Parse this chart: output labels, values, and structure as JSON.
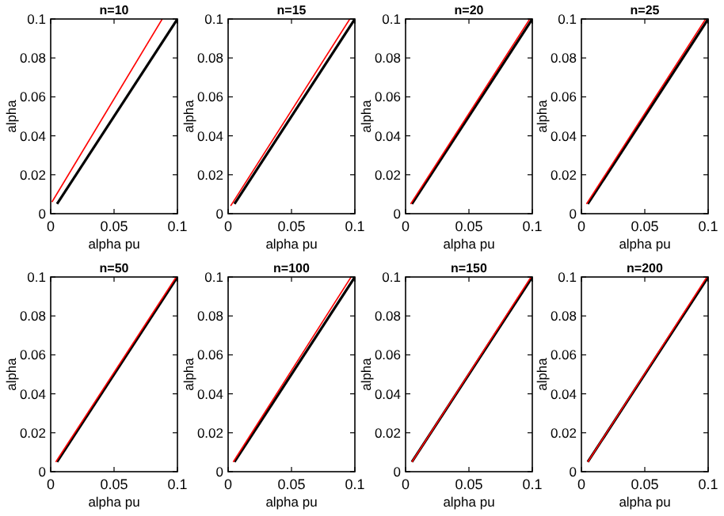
{
  "chart_data": [
    {
      "type": "line",
      "title": "n=10",
      "xlabel": "alpha pu",
      "ylabel": "alpha",
      "xlim": [
        0,
        0.1
      ],
      "ylim": [
        0,
        0.1
      ],
      "xticks": [
        0,
        0.05,
        0.1
      ],
      "yticks": [
        0,
        0.02,
        0.04,
        0.06,
        0.08,
        0.1
      ],
      "grid": false,
      "series": [
        {
          "color": "#000000",
          "x": [
            0.005,
            0.1
          ],
          "values": [
            0.005,
            0.1
          ]
        },
        {
          "color": "#ff0000",
          "x": [
            0.001,
            0.088
          ],
          "values": [
            0.006,
            0.1
          ]
        }
      ]
    },
    {
      "type": "line",
      "title": "n=15",
      "xlabel": "alpha pu",
      "ylabel": "alpha",
      "xlim": [
        0,
        0.1
      ],
      "ylim": [
        0,
        0.1
      ],
      "xticks": [
        0,
        0.05,
        0.1
      ],
      "yticks": [
        0,
        0.02,
        0.04,
        0.06,
        0.08,
        0.1
      ],
      "grid": false,
      "series": [
        {
          "color": "#000000",
          "x": [
            0.005,
            0.1
          ],
          "values": [
            0.005,
            0.1
          ]
        },
        {
          "color": "#ff0000",
          "x": [
            0.002,
            0.096
          ],
          "values": [
            0.004,
            0.1
          ]
        }
      ]
    },
    {
      "type": "line",
      "title": "n=20",
      "xlabel": "alpha pu",
      "ylabel": "alpha",
      "xlim": [
        0,
        0.1
      ],
      "ylim": [
        0,
        0.1
      ],
      "xticks": [
        0,
        0.05,
        0.1
      ],
      "yticks": [
        0,
        0.02,
        0.04,
        0.06,
        0.08,
        0.1
      ],
      "grid": false,
      "series": [
        {
          "color": "#000000",
          "x": [
            0.005,
            0.1
          ],
          "values": [
            0.005,
            0.1
          ]
        },
        {
          "color": "#ff0000",
          "x": [
            0.004,
            0.098
          ],
          "values": [
            0.005,
            0.1
          ]
        }
      ]
    },
    {
      "type": "line",
      "title": "n=25",
      "xlabel": "alpha pu",
      "ylabel": "alpha",
      "xlim": [
        0,
        0.1
      ],
      "ylim": [
        0,
        0.1
      ],
      "xticks": [
        0,
        0.05,
        0.1
      ],
      "yticks": [
        0,
        0.02,
        0.04,
        0.06,
        0.08,
        0.1
      ],
      "grid": false,
      "series": [
        {
          "color": "#000000",
          "x": [
            0.005,
            0.1
          ],
          "values": [
            0.005,
            0.1
          ]
        },
        {
          "color": "#ff0000",
          "x": [
            0.004,
            0.098
          ],
          "values": [
            0.005,
            0.1
          ]
        }
      ]
    },
    {
      "type": "line",
      "title": "n=50",
      "xlabel": "alpha pu",
      "ylabel": "alpha",
      "xlim": [
        0,
        0.1
      ],
      "ylim": [
        0,
        0.1
      ],
      "xticks": [
        0,
        0.05,
        0.1
      ],
      "yticks": [
        0,
        0.02,
        0.04,
        0.06,
        0.08,
        0.1
      ],
      "grid": false,
      "series": [
        {
          "color": "#000000",
          "x": [
            0.005,
            0.1
          ],
          "values": [
            0.005,
            0.1
          ]
        },
        {
          "color": "#ff0000",
          "x": [
            0.004,
            0.099
          ],
          "values": [
            0.005,
            0.1
          ]
        }
      ]
    },
    {
      "type": "line",
      "title": "n=100",
      "xlabel": "alpha pu",
      "ylabel": "alpha",
      "xlim": [
        0,
        0.1
      ],
      "ylim": [
        0,
        0.1
      ],
      "xticks": [
        0,
        0.05,
        0.1
      ],
      "yticks": [
        0,
        0.02,
        0.04,
        0.06,
        0.08,
        0.1
      ],
      "grid": false,
      "series": [
        {
          "color": "#000000",
          "x": [
            0.005,
            0.1
          ],
          "values": [
            0.005,
            0.1
          ]
        },
        {
          "color": "#ff0000",
          "x": [
            0.004,
            0.097
          ],
          "values": [
            0.005,
            0.1
          ]
        }
      ]
    },
    {
      "type": "line",
      "title": "n=150",
      "xlabel": "alpha pu",
      "ylabel": "alpha",
      "xlim": [
        0,
        0.1
      ],
      "ylim": [
        0,
        0.1
      ],
      "xticks": [
        0,
        0.05,
        0.1
      ],
      "yticks": [
        0,
        0.02,
        0.04,
        0.06,
        0.08,
        0.1
      ],
      "grid": false,
      "series": [
        {
          "color": "#000000",
          "x": [
            0.005,
            0.1
          ],
          "values": [
            0.005,
            0.1
          ]
        },
        {
          "color": "#ff0000",
          "x": [
            0.005,
            0.099
          ],
          "values": [
            0.005,
            0.1
          ]
        }
      ]
    },
    {
      "type": "line",
      "title": "n=200",
      "xlabel": "alpha pu",
      "ylabel": "alpha",
      "xlim": [
        0,
        0.1
      ],
      "ylim": [
        0,
        0.1
      ],
      "xticks": [
        0,
        0.05,
        0.1
      ],
      "yticks": [
        0,
        0.02,
        0.04,
        0.06,
        0.08,
        0.1
      ],
      "grid": false,
      "series": [
        {
          "color": "#000000",
          "x": [
            0.005,
            0.1
          ],
          "values": [
            0.005,
            0.1
          ]
        },
        {
          "color": "#ff0000",
          "x": [
            0.005,
            0.099
          ],
          "values": [
            0.005,
            0.1
          ]
        }
      ]
    }
  ]
}
